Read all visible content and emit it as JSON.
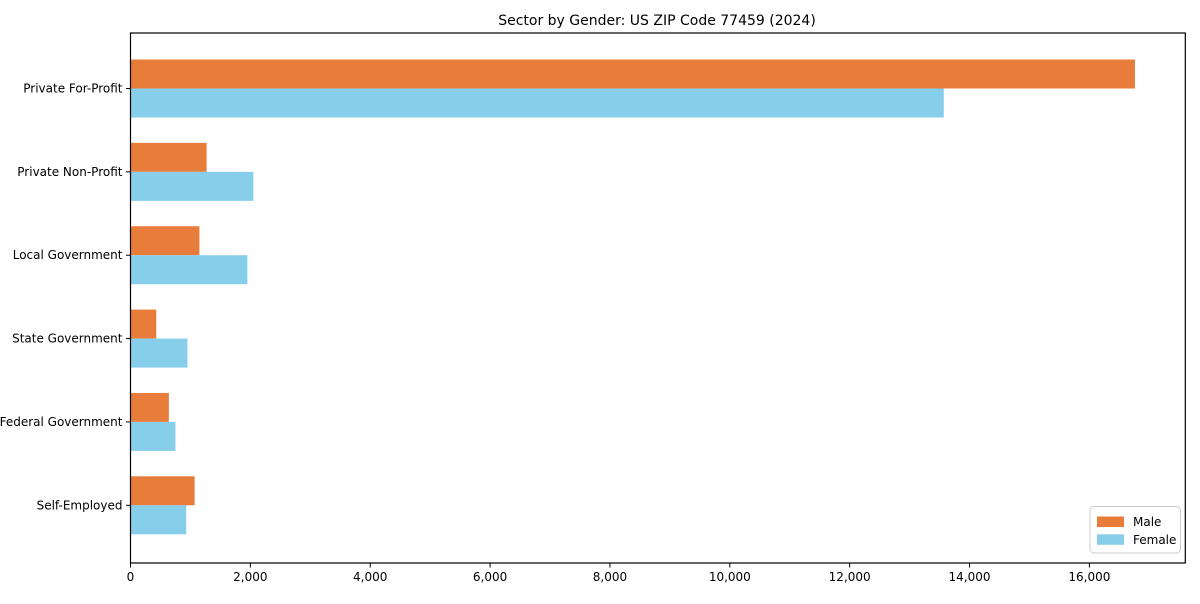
{
  "chart_data": {
    "type": "bar",
    "orientation": "horizontal",
    "title": "Sector by Gender: US ZIP Code 77459 (2024)",
    "categories": [
      "Private For-Profit",
      "Private Non-Profit",
      "Local Government",
      "State Government",
      "Federal Government",
      "Self-Employed"
    ],
    "series": [
      {
        "name": "Male",
        "color": "#E87D3B",
        "values": [
          16760,
          1270,
          1150,
          430,
          640,
          1070
        ]
      },
      {
        "name": "Female",
        "color": "#87CEEB",
        "values": [
          13570,
          2050,
          1950,
          950,
          750,
          930
        ]
      }
    ],
    "xlabel": "",
    "ylabel": "",
    "xlim": [
      0,
      17600
    ],
    "xticks": [
      0,
      2000,
      4000,
      6000,
      8000,
      10000,
      12000,
      14000,
      16000
    ],
    "xtick_labels": [
      "0",
      "2,000",
      "4,000",
      "6,000",
      "8,000",
      "10,000",
      "12,000",
      "14,000",
      "16,000"
    ],
    "grid": false,
    "legend": {
      "position": "lower right",
      "entries": [
        "Male",
        "Female"
      ]
    }
  },
  "colors": {
    "spine": "#000000",
    "legend_border": "#cccccc",
    "background": "#ffffff"
  }
}
